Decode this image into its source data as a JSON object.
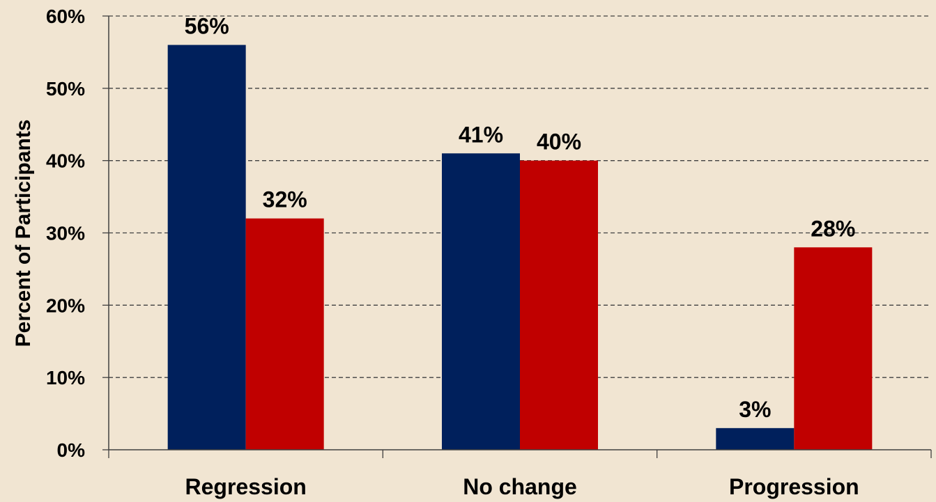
{
  "colors": {
    "background": "#F1E5D2",
    "series_1": "#00205C",
    "series_2": "#C00000",
    "gridline": "#404040",
    "axis": "#404040",
    "text": "#000000"
  },
  "chart_data": {
    "type": "bar",
    "title": "",
    "xlabel": "",
    "ylabel": "Percent of Participants",
    "categories": [
      "Regression",
      "No change",
      "Progression"
    ],
    "series": [
      {
        "values": [
          56,
          41,
          3
        ]
      },
      {
        "values": [
          32,
          40,
          28
        ]
      }
    ],
    "data_labels": [
      [
        "56%",
        "41%",
        "3%"
      ],
      [
        "32%",
        "40%",
        "28%"
      ]
    ],
    "ylim": [
      0,
      60
    ],
    "yticks": [
      0,
      10,
      20,
      30,
      40,
      50,
      60
    ],
    "ytick_labels": [
      "0%",
      "10%",
      "20%",
      "30%",
      "40%",
      "50%",
      "60%"
    ],
    "grid": true,
    "grid_style": "dashed",
    "legend": "none"
  }
}
